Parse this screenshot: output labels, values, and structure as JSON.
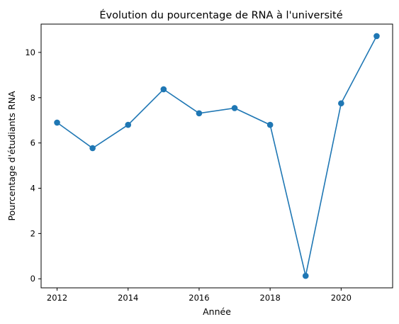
{
  "chart_data": {
    "type": "line",
    "title": "Évolution du pourcentage de RNA à l'université",
    "xlabel": "Année",
    "ylabel": "Pourcentage d'étudiants RNA",
    "x": [
      2012,
      2013,
      2014,
      2015,
      2016,
      2017,
      2018,
      2019,
      2020,
      2021
    ],
    "series": [
      {
        "values": [
          6.9,
          5.77,
          6.8,
          8.37,
          7.31,
          7.54,
          6.8,
          0.13,
          7.75,
          10.72
        ],
        "color": "#1f77b4",
        "marker": "circle"
      }
    ],
    "xlim": [
      2011.55,
      2021.45
    ],
    "ylim": [
      -0.4,
      11.25
    ],
    "xticks": [
      "2012",
      "2014",
      "2016",
      "2018",
      "2020"
    ],
    "yticks": [
      "0",
      "2",
      "4",
      "6",
      "8",
      "10"
    ],
    "grid": false,
    "legend": "none"
  }
}
